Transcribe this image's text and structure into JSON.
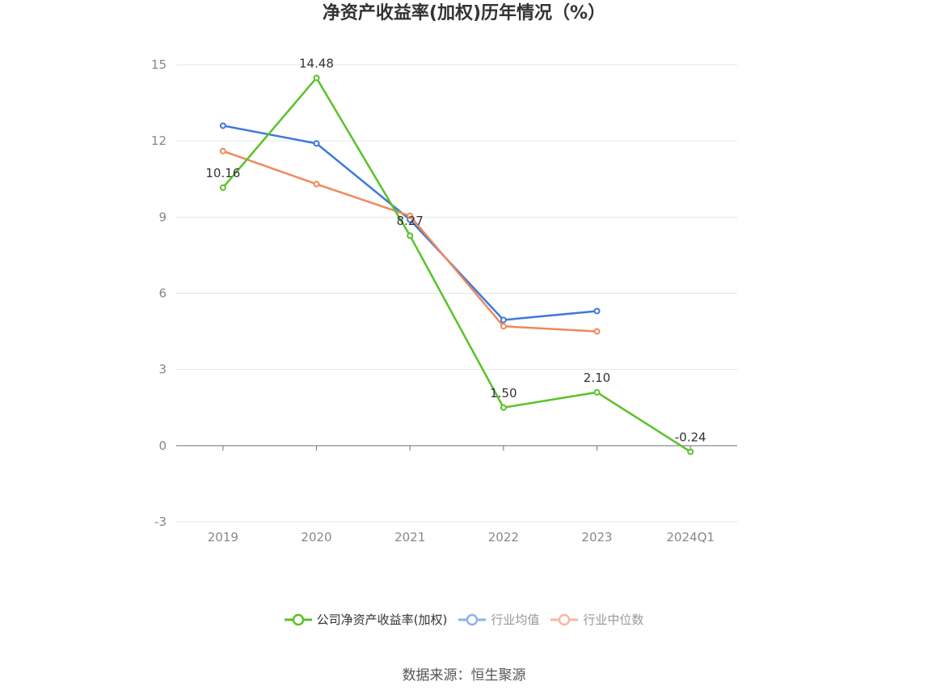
{
  "chart_data": {
    "type": "line",
    "title": "净资产收益率(加权)历年情况（%）",
    "categories": [
      "2019",
      "2020",
      "2021",
      "2022",
      "2023",
      "2024Q1"
    ],
    "ylim": [
      -3,
      15
    ],
    "yticks": [
      -3,
      0,
      3,
      6,
      9,
      12,
      15
    ],
    "grid": true,
    "legend_position": "bottom",
    "series": [
      {
        "name": "公司净资产收益率(加权)",
        "color": "#5ac229",
        "values": [
          10.16,
          14.48,
          8.27,
          1.5,
          2.1,
          -0.24
        ],
        "labels": [
          "10.16",
          "14.48",
          "8.27",
          "1.50",
          "2.10",
          "-0.24"
        ]
      },
      {
        "name": "行业均值",
        "color": "#3b78dc",
        "values": [
          12.6,
          11.9,
          8.9,
          4.95,
          5.3,
          null
        ]
      },
      {
        "name": "行业中位数",
        "color": "#f0885a",
        "values": [
          11.6,
          10.3,
          9.05,
          4.7,
          4.5,
          null
        ]
      }
    ]
  },
  "legend": {
    "items": [
      {
        "label": "公司净资产收益率(加权)",
        "color": "#5ac229",
        "text_color": "#333333"
      },
      {
        "label": "行业均值",
        "color": "#8fb1ea",
        "text_color": "#999999"
      },
      {
        "label": "行业中位数",
        "color": "#f5b9a0",
        "text_color": "#999999"
      }
    ]
  },
  "source": "数据来源：恒生聚源"
}
